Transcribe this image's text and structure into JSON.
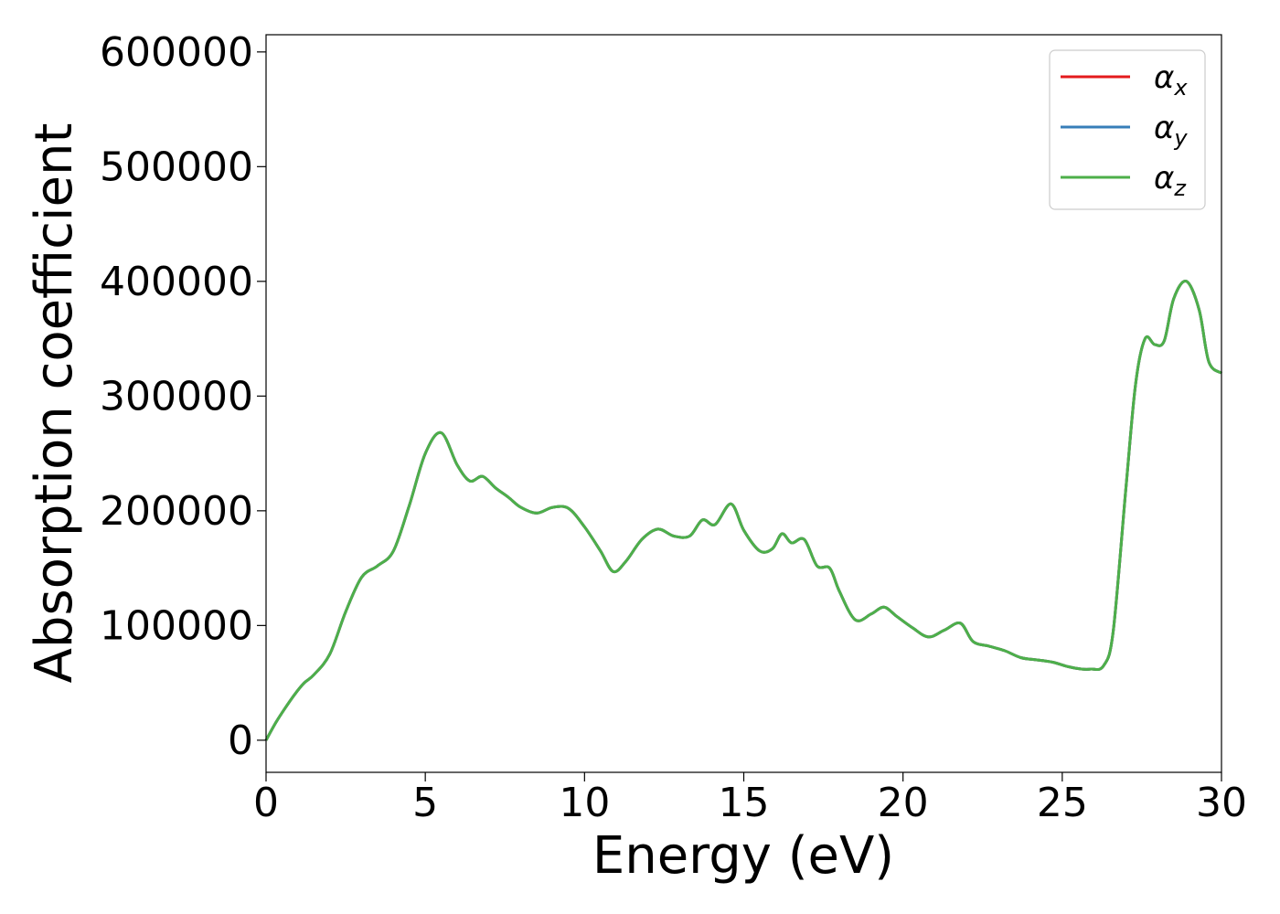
{
  "chart_data": {
    "type": "line",
    "title": "",
    "xlabel": "Energy (eV)",
    "ylabel": "Absorption coefficient",
    "xlim": [
      0,
      30
    ],
    "ylim": [
      -28000,
      615000
    ],
    "xticks": [
      "0",
      "5",
      "10",
      "15",
      "20",
      "25",
      "30"
    ],
    "yticks": [
      "0",
      "100000",
      "200000",
      "300000",
      "400000",
      "500000",
      "600000"
    ],
    "grid": false,
    "legend": {
      "placement": "top-right",
      "entries": [
        {
          "symbol": "α",
          "sub": "x",
          "color": "#e41a1c"
        },
        {
          "symbol": "α",
          "sub": "y",
          "color": "#377eb8"
        },
        {
          "symbol": "α",
          "sub": "z",
          "color": "#4daf4a"
        }
      ]
    },
    "x": [
      0,
      0.3,
      0.6,
      0.9,
      1.2,
      1.5,
      2.0,
      2.5,
      3.0,
      3.5,
      4.0,
      4.5,
      5.0,
      5.5,
      6.0,
      6.4,
      6.8,
      7.2,
      7.6,
      8.0,
      8.5,
      9.0,
      9.5,
      10.0,
      10.5,
      10.9,
      11.3,
      11.8,
      12.3,
      12.8,
      13.3,
      13.7,
      14.1,
      14.6,
      15.0,
      15.5,
      15.9,
      16.2,
      16.5,
      16.9,
      17.3,
      17.7,
      18.0,
      18.5,
      19.0,
      19.4,
      19.8,
      20.3,
      20.8,
      21.3,
      21.8,
      22.2,
      22.7,
      23.2,
      23.7,
      24.2,
      24.7,
      25.2,
      25.6,
      25.9,
      26.3,
      26.6,
      27.0,
      27.3,
      27.6,
      27.9,
      28.2,
      28.5,
      28.9,
      29.3,
      29.6,
      30.0
    ],
    "series": [
      {
        "name": "",
        "values": [
          0,
          15000,
          28000,
          40000,
          50000,
          57000,
          75000,
          112000,
          142000,
          152000,
          165000,
          205000,
          250000,
          268000,
          240000,
          226000,
          230000,
          220000,
          212000,
          203000,
          198000,
          203000,
          202000,
          186000,
          165000,
          147000,
          156000,
          175000,
          184000,
          178000,
          178000,
          192000,
          188000,
          206000,
          183000,
          165000,
          167000,
          180000,
          172000,
          175000,
          152000,
          150000,
          130000,
          105000,
          110000,
          116000,
          108000,
          98000,
          90000,
          96000,
          102000,
          86000,
          82000,
          78000,
          72000,
          70000,
          68000,
          64000,
          62000,
          62000,
          65000,
          95000,
          220000,
          310000,
          350000,
          345000,
          348000,
          385000,
          400000,
          375000,
          330000,
          320000
        ]
      },
      {
        "name": "",
        "values": [
          0,
          15000,
          28000,
          40000,
          50000,
          57000,
          75000,
          112000,
          142000,
          152000,
          165000,
          205000,
          250000,
          268000,
          240000,
          226000,
          230000,
          220000,
          212000,
          203000,
          198000,
          203000,
          202000,
          186000,
          165000,
          147000,
          156000,
          175000,
          184000,
          178000,
          178000,
          192000,
          188000,
          206000,
          183000,
          165000,
          167000,
          180000,
          172000,
          175000,
          152000,
          150000,
          130000,
          105000,
          110000,
          116000,
          108000,
          98000,
          90000,
          96000,
          102000,
          86000,
          82000,
          78000,
          72000,
          70000,
          68000,
          64000,
          62000,
          62000,
          65000,
          95000,
          220000,
          310000,
          350000,
          345000,
          348000,
          385000,
          400000,
          375000,
          330000,
          320000
        ]
      },
      {
        "name": "",
        "values": [
          0,
          15000,
          28000,
          40000,
          50000,
          57000,
          75000,
          112000,
          142000,
          152000,
          165000,
          205000,
          250000,
          268000,
          240000,
          226000,
          230000,
          220000,
          212000,
          203000,
          198000,
          203000,
          202000,
          186000,
          165000,
          147000,
          156000,
          175000,
          184000,
          178000,
          178000,
          192000,
          188000,
          206000,
          183000,
          165000,
          167000,
          180000,
          172000,
          175000,
          152000,
          150000,
          130000,
          105000,
          110000,
          116000,
          108000,
          98000,
          90000,
          96000,
          102000,
          86000,
          82000,
          78000,
          72000,
          70000,
          68000,
          64000,
          62000,
          62000,
          65000,
          95000,
          220000,
          310000,
          350000,
          345000,
          348000,
          385000,
          400000,
          375000,
          330000,
          320000
        ]
      }
    ]
  }
}
